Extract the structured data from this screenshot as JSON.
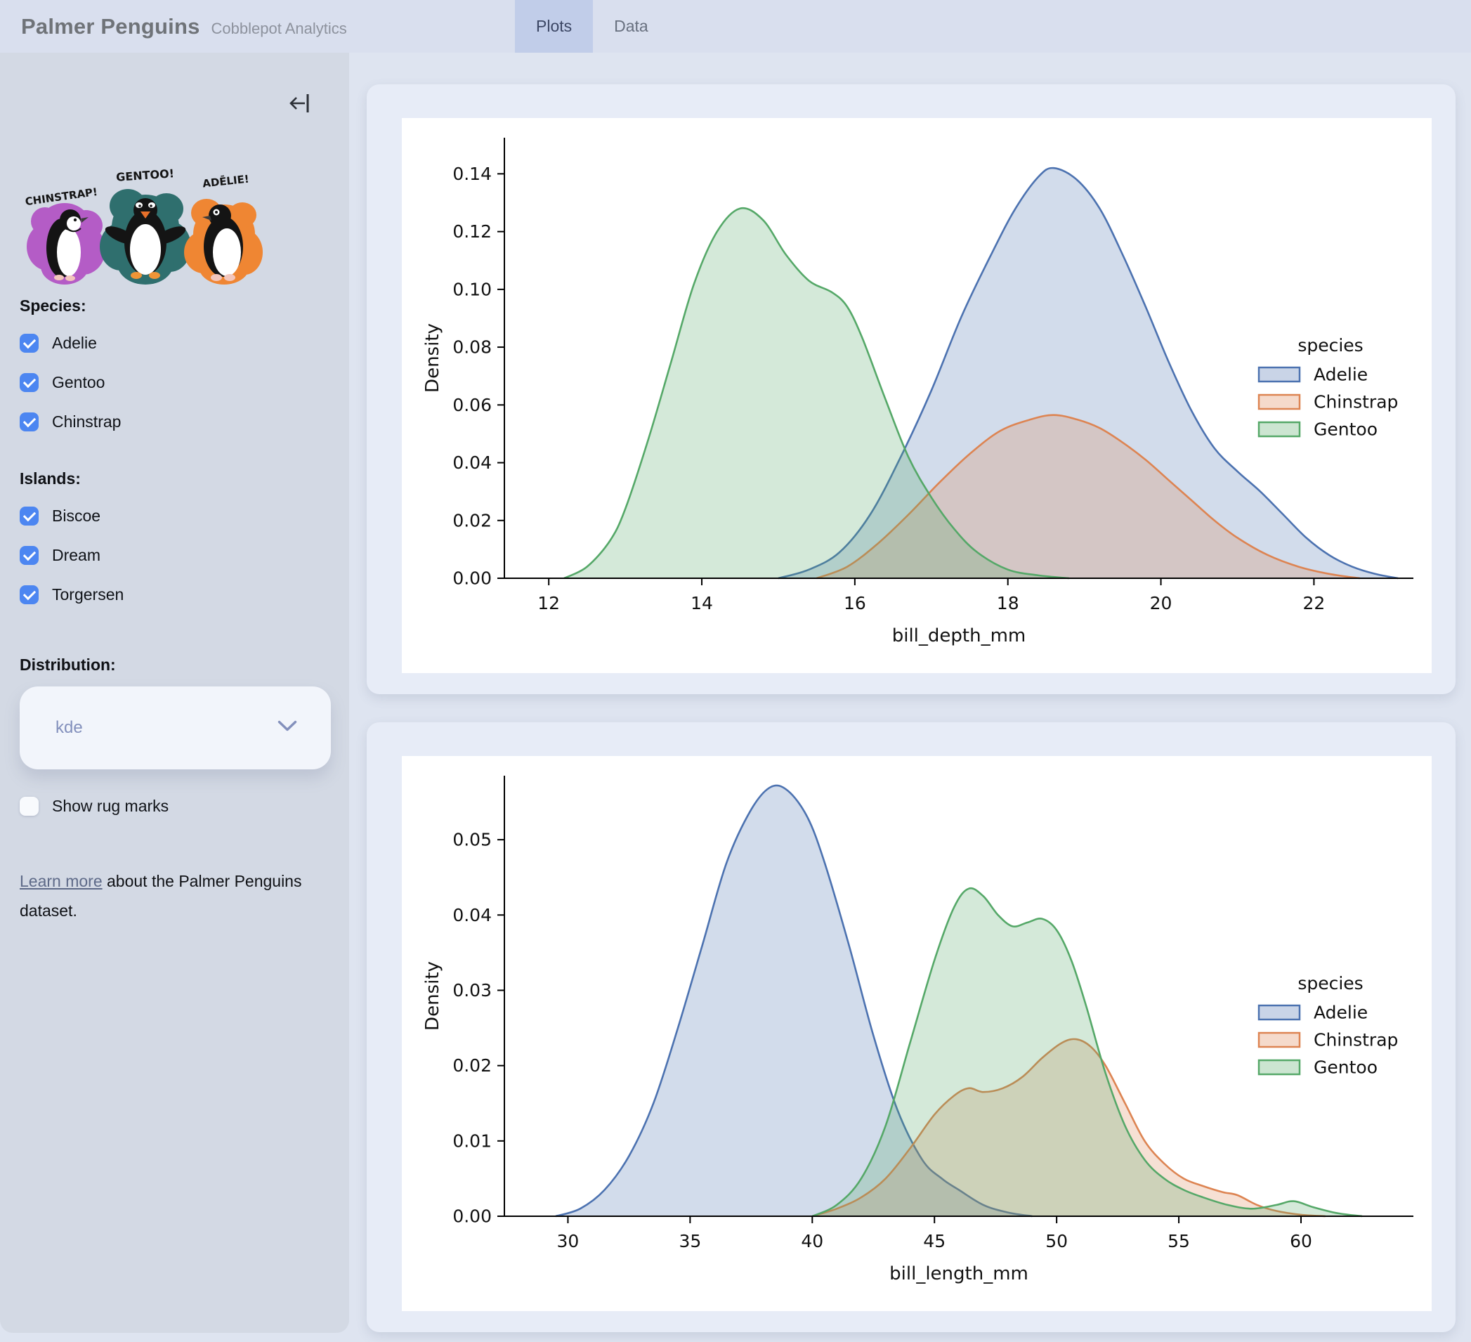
{
  "header": {
    "title": "Palmer Penguins",
    "subtitle": "Cobblepot Analytics",
    "tabs": [
      {
        "label": "Plots",
        "active": true
      },
      {
        "label": "Data",
        "active": false
      }
    ]
  },
  "sidebar": {
    "artwork": {
      "labels": [
        "CHINSTRAP!",
        "GENTOO!",
        "ADĒLIE!"
      ],
      "colors": {
        "chinstrap": "#b45cc6",
        "gentoo": "#2f6f6e",
        "adelie": "#ef8633"
      }
    },
    "species": {
      "label": "Species:",
      "items": [
        {
          "label": "Adelie",
          "checked": true
        },
        {
          "label": "Gentoo",
          "checked": true
        },
        {
          "label": "Chinstrap",
          "checked": true
        }
      ]
    },
    "islands": {
      "label": "Islands:",
      "items": [
        {
          "label": "Biscoe",
          "checked": true
        },
        {
          "label": "Dream",
          "checked": true
        },
        {
          "label": "Torgersen",
          "checked": true
        }
      ]
    },
    "distribution": {
      "label": "Distribution:",
      "value": "kde"
    },
    "rug": {
      "label": "Show rug marks",
      "checked": false
    },
    "footer": {
      "link_text": "Learn more",
      "text_after": " about the Palmer Penguins dataset."
    }
  },
  "colors": {
    "adelie_line": "#4c72b0",
    "chinstrap_line": "#dd8452",
    "gentoo_line": "#55a868",
    "fill_alpha": 0.25,
    "checkbox_blue": "#4c86f1",
    "active_tab_bg": "#c1cde9"
  },
  "chart_data": [
    {
      "type": "area",
      "kind": "kde-density",
      "xlabel": "bill_depth_mm",
      "ylabel": "Density",
      "xlim": [
        11.42,
        23.3
      ],
      "ylim": [
        0,
        0.1525
      ],
      "xticks": [
        12,
        14,
        16,
        18,
        20,
        22
      ],
      "yticks": [
        0,
        0.02,
        0.04,
        0.06,
        0.08,
        0.1,
        0.12,
        0.14
      ],
      "ytick_labels": [
        "0.00",
        "0.02",
        "0.04",
        "0.06",
        "0.08",
        "0.10",
        "0.12",
        "0.14"
      ],
      "grid": false,
      "legend": {
        "title": "species",
        "position": "center right"
      },
      "series": [
        {
          "name": "Adelie",
          "color": "#4c72b0",
          "points": [
            [
              15.0,
              0
            ],
            [
              15.4,
              0.003
            ],
            [
              15.8,
              0.009
            ],
            [
              16.2,
              0.022
            ],
            [
              16.6,
              0.042
            ],
            [
              17.0,
              0.065
            ],
            [
              17.4,
              0.091
            ],
            [
              17.8,
              0.113
            ],
            [
              18.1,
              0.128
            ],
            [
              18.4,
              0.139
            ],
            [
              18.6,
              0.142
            ],
            [
              18.9,
              0.138
            ],
            [
              19.2,
              0.128
            ],
            [
              19.5,
              0.112
            ],
            [
              19.8,
              0.094
            ],
            [
              20.1,
              0.075
            ],
            [
              20.4,
              0.058
            ],
            [
              20.7,
              0.045
            ],
            [
              21.0,
              0.037
            ],
            [
              21.3,
              0.03
            ],
            [
              21.6,
              0.022
            ],
            [
              21.9,
              0.014
            ],
            [
              22.2,
              0.008
            ],
            [
              22.5,
              0.004
            ],
            [
              22.8,
              0.0015
            ],
            [
              23.1,
              0
            ]
          ]
        },
        {
          "name": "Chinstrap",
          "color": "#dd8452",
          "points": [
            [
              15.5,
              0
            ],
            [
              15.9,
              0.004
            ],
            [
              16.3,
              0.012
            ],
            [
              16.7,
              0.022
            ],
            [
              17.1,
              0.033
            ],
            [
              17.5,
              0.043
            ],
            [
              17.9,
              0.051
            ],
            [
              18.3,
              0.055
            ],
            [
              18.6,
              0.0565
            ],
            [
              18.9,
              0.055
            ],
            [
              19.2,
              0.052
            ],
            [
              19.5,
              0.047
            ],
            [
              19.8,
              0.041
            ],
            [
              20.1,
              0.034
            ],
            [
              20.4,
              0.027
            ],
            [
              20.7,
              0.02
            ],
            [
              21.0,
              0.014
            ],
            [
              21.4,
              0.008
            ],
            [
              21.8,
              0.004
            ],
            [
              22.2,
              0.0015
            ],
            [
              22.6,
              0
            ]
          ]
        },
        {
          "name": "Gentoo",
          "color": "#55a868",
          "points": [
            [
              12.2,
              0
            ],
            [
              12.5,
              0.004
            ],
            [
              12.8,
              0.013
            ],
            [
              13.0,
              0.024
            ],
            [
              13.3,
              0.048
            ],
            [
              13.6,
              0.075
            ],
            [
              13.9,
              0.102
            ],
            [
              14.2,
              0.12
            ],
            [
              14.5,
              0.128
            ],
            [
              14.8,
              0.124
            ],
            [
              15.1,
              0.112
            ],
            [
              15.4,
              0.103
            ],
            [
              15.7,
              0.099
            ],
            [
              15.9,
              0.094
            ],
            [
              16.1,
              0.083
            ],
            [
              16.4,
              0.062
            ],
            [
              16.7,
              0.042
            ],
            [
              17.0,
              0.028
            ],
            [
              17.3,
              0.017
            ],
            [
              17.6,
              0.009
            ],
            [
              18.0,
              0.003
            ],
            [
              18.4,
              0.001
            ],
            [
              18.8,
              0
            ]
          ]
        }
      ]
    },
    {
      "type": "area",
      "kind": "kde-density",
      "xlabel": "bill_length_mm",
      "ylabel": "Density",
      "xlim": [
        27.4,
        64.6
      ],
      "ylim": [
        0,
        0.0585
      ],
      "xticks": [
        30,
        35,
        40,
        45,
        50,
        55,
        60
      ],
      "yticks": [
        0,
        0.01,
        0.02,
        0.03,
        0.04,
        0.05
      ],
      "ytick_labels": [
        "0.00",
        "0.01",
        "0.02",
        "0.03",
        "0.04",
        "0.05"
      ],
      "grid": false,
      "legend": {
        "title": "species",
        "position": "center right"
      },
      "series": [
        {
          "name": "Adelie",
          "color": "#4c72b0",
          "points": [
            [
              29.5,
              0
            ],
            [
              30.5,
              0.001
            ],
            [
              31.5,
              0.0035
            ],
            [
              32.5,
              0.008
            ],
            [
              33.5,
              0.015
            ],
            [
              34.5,
              0.025
            ],
            [
              35.5,
              0.036
            ],
            [
              36.5,
              0.047
            ],
            [
              37.5,
              0.054
            ],
            [
              38.3,
              0.057
            ],
            [
              39.0,
              0.0565
            ],
            [
              39.8,
              0.053
            ],
            [
              40.5,
              0.047
            ],
            [
              41.5,
              0.036
            ],
            [
              42.5,
              0.024
            ],
            [
              43.5,
              0.014
            ],
            [
              44.5,
              0.0075
            ],
            [
              45.3,
              0.005
            ],
            [
              46.0,
              0.0035
            ],
            [
              47.0,
              0.0015
            ],
            [
              48.0,
              0.0005
            ],
            [
              49.0,
              0
            ]
          ]
        },
        {
          "name": "Chinstrap",
          "color": "#dd8452",
          "points": [
            [
              40.0,
              0
            ],
            [
              41.0,
              0.001
            ],
            [
              42.0,
              0.0025
            ],
            [
              43.0,
              0.005
            ],
            [
              44.0,
              0.009
            ],
            [
              45.0,
              0.0135
            ],
            [
              45.8,
              0.016
            ],
            [
              46.4,
              0.017
            ],
            [
              47.0,
              0.0165
            ],
            [
              47.8,
              0.017
            ],
            [
              48.6,
              0.0185
            ],
            [
              49.4,
              0.021
            ],
            [
              50.2,
              0.023
            ],
            [
              50.8,
              0.0235
            ],
            [
              51.4,
              0.0225
            ],
            [
              52.0,
              0.02
            ],
            [
              52.8,
              0.015
            ],
            [
              53.6,
              0.01
            ],
            [
              54.4,
              0.007
            ],
            [
              55.2,
              0.005
            ],
            [
              56.0,
              0.004
            ],
            [
              56.8,
              0.0032
            ],
            [
              57.4,
              0.0028
            ],
            [
              58.2,
              0.0015
            ],
            [
              59.0,
              0.0007
            ],
            [
              60.0,
              0.0002
            ],
            [
              61.0,
              0
            ]
          ]
        },
        {
          "name": "Gentoo",
          "color": "#55a868",
          "points": [
            [
              40.0,
              0
            ],
            [
              41.0,
              0.0015
            ],
            [
              42.0,
              0.005
            ],
            [
              43.0,
              0.012
            ],
            [
              44.0,
              0.023
            ],
            [
              45.0,
              0.034
            ],
            [
              45.8,
              0.041
            ],
            [
              46.4,
              0.0435
            ],
            [
              47.0,
              0.0425
            ],
            [
              47.6,
              0.04
            ],
            [
              48.2,
              0.0385
            ],
            [
              48.8,
              0.039
            ],
            [
              49.4,
              0.0395
            ],
            [
              50.0,
              0.038
            ],
            [
              50.6,
              0.034
            ],
            [
              51.2,
              0.028
            ],
            [
              52.0,
              0.019
            ],
            [
              52.8,
              0.012
            ],
            [
              53.6,
              0.0075
            ],
            [
              54.4,
              0.005
            ],
            [
              55.2,
              0.0035
            ],
            [
              56.0,
              0.0025
            ],
            [
              57.0,
              0.0015
            ],
            [
              58.0,
              0.001
            ],
            [
              59.0,
              0.0015
            ],
            [
              59.7,
              0.002
            ],
            [
              60.5,
              0.0012
            ],
            [
              61.5,
              0.0004
            ],
            [
              62.5,
              0
            ]
          ]
        }
      ]
    }
  ]
}
